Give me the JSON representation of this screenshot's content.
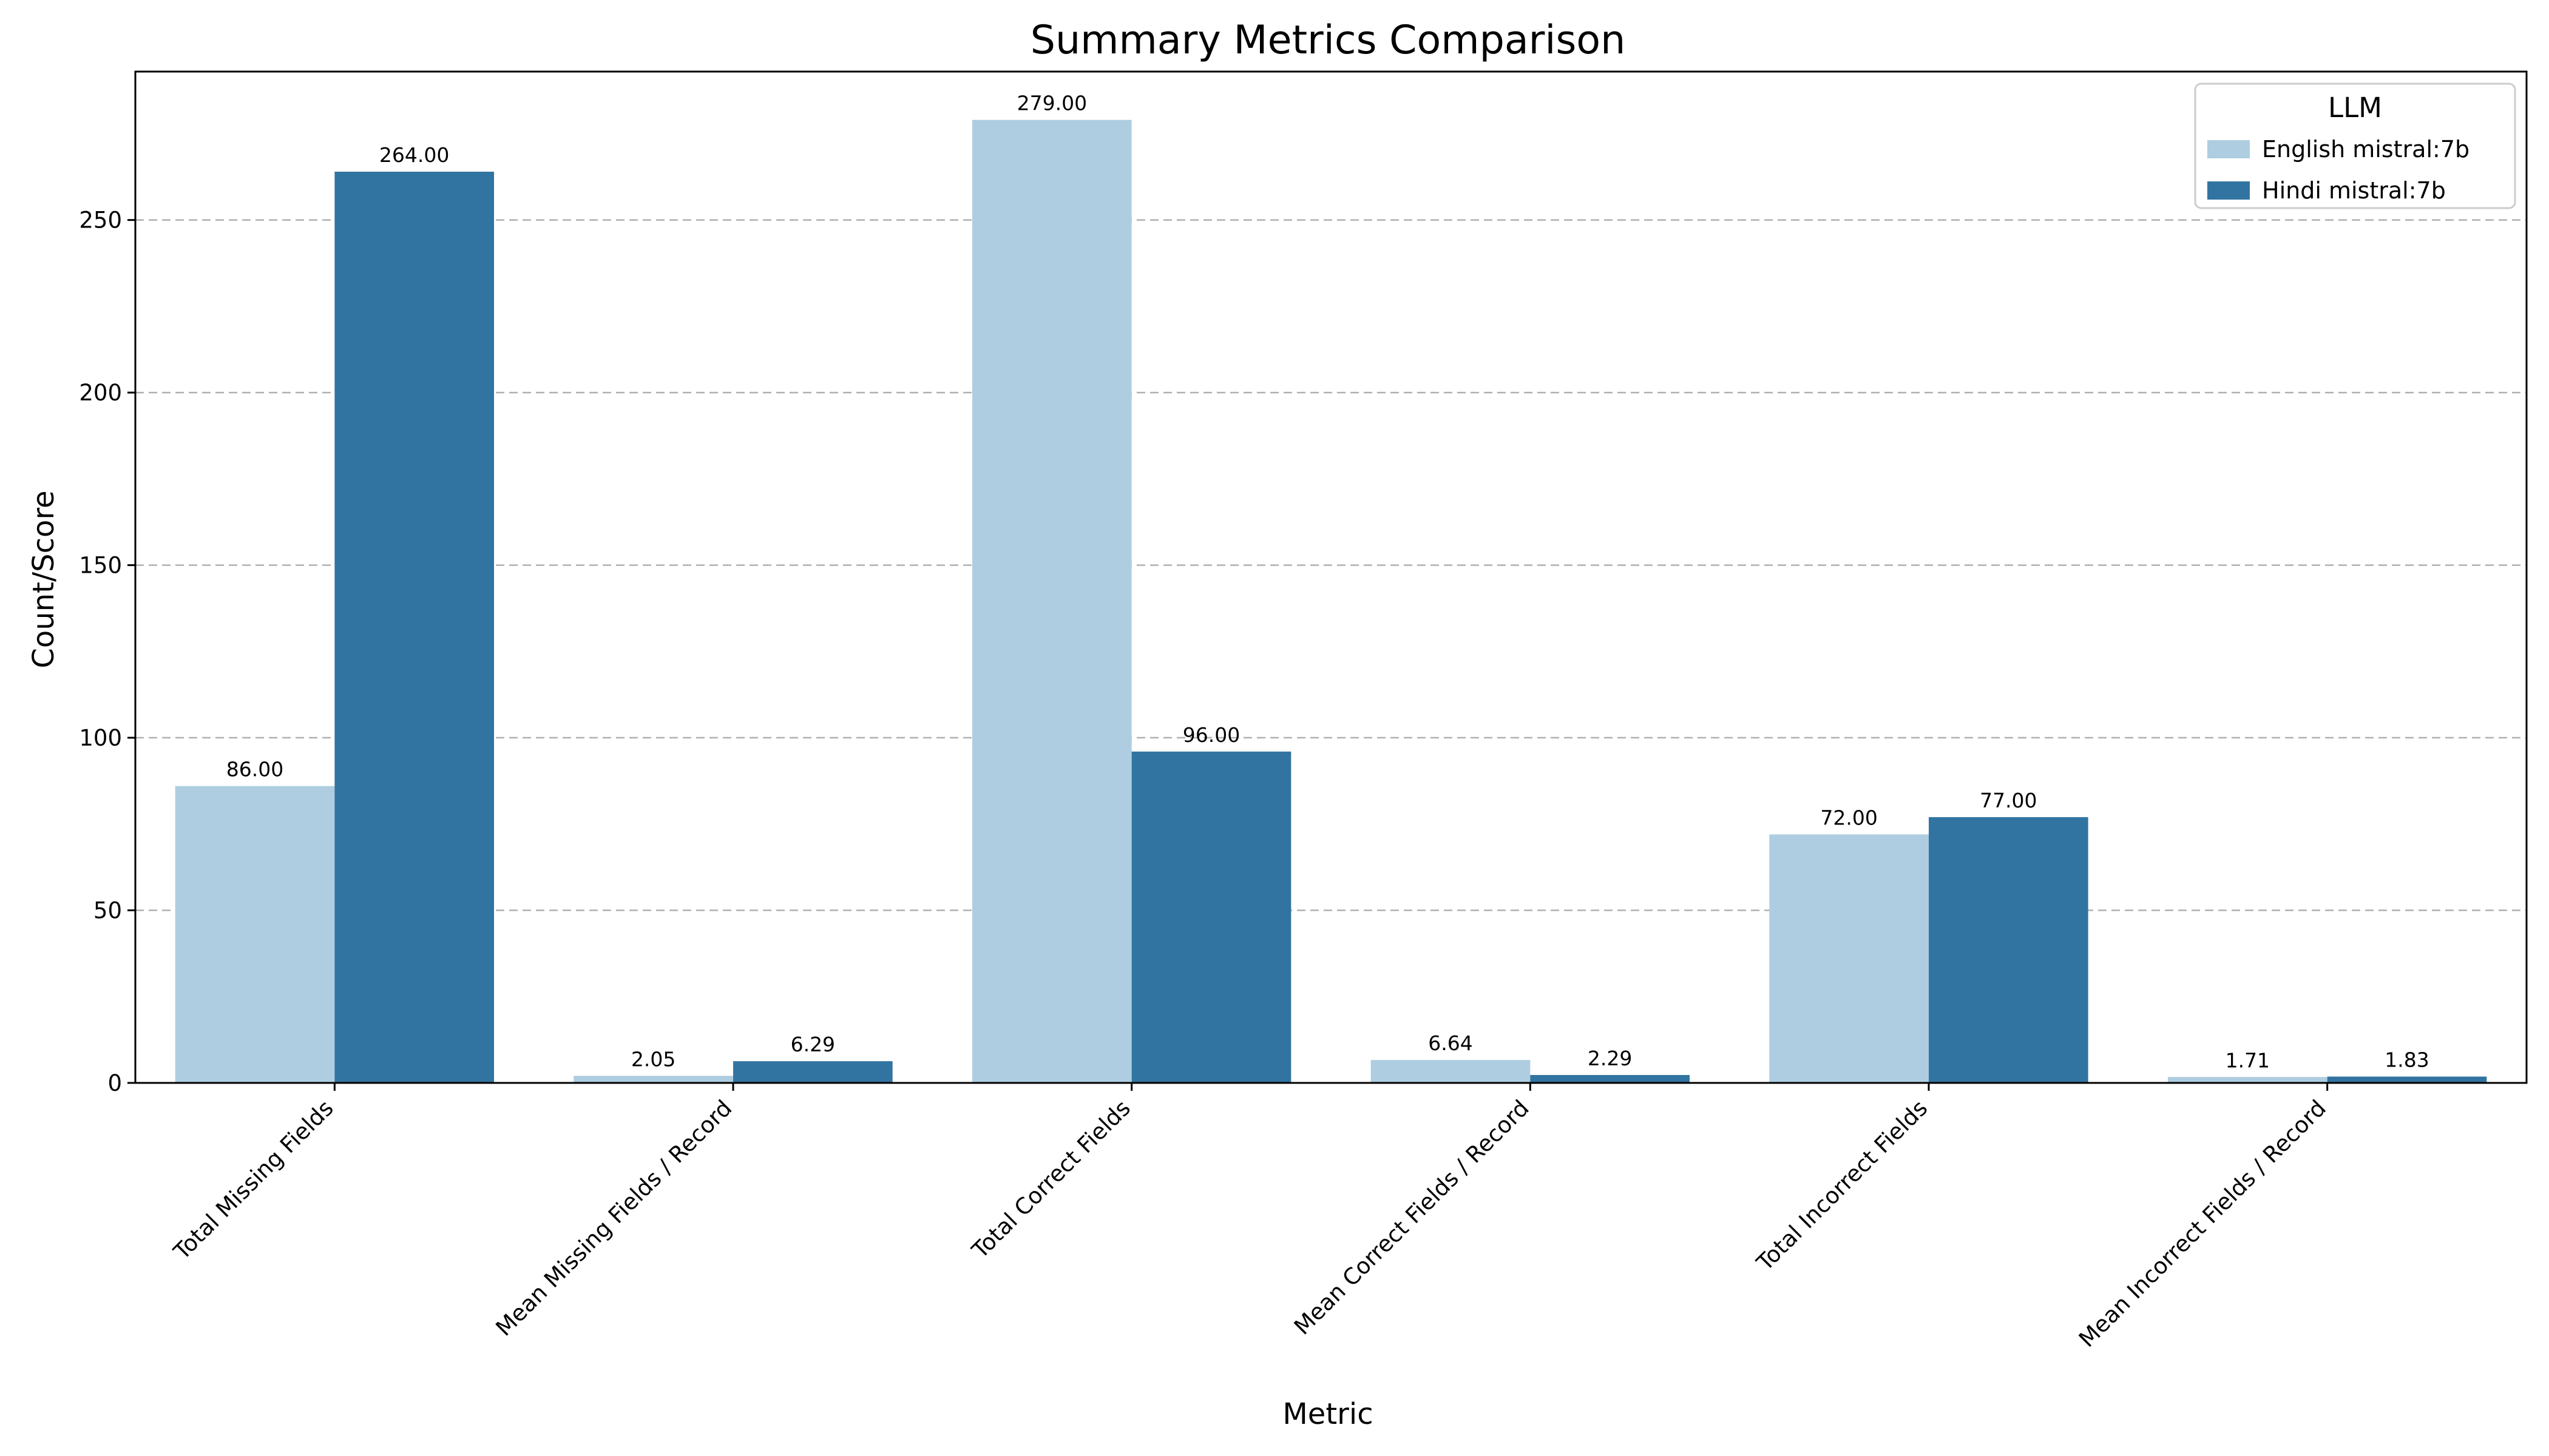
{
  "chart_data": {
    "type": "bar",
    "title": "Summary Metrics Comparison",
    "xlabel": "Metric",
    "ylabel": "Count/Score",
    "ylim": [
      0,
      293
    ],
    "yticks": [
      0,
      50,
      100,
      150,
      200,
      250
    ],
    "grid": "y-dashed",
    "categories": [
      "Total Missing Fields",
      "Mean Missing Fields / Record",
      "Total Correct Fields",
      "Mean Correct Fields / Record",
      "Total Incorrect Fields",
      "Mean Incorrect Fields / Record"
    ],
    "series": [
      {
        "name": "English mistral:7b",
        "color": "#aecde0",
        "values": [
          86.0,
          2.05,
          279.0,
          6.64,
          72.0,
          1.71
        ],
        "labels": [
          "86.00",
          "2.05",
          "279.00",
          "6.64",
          "72.00",
          "1.71"
        ]
      },
      {
        "name": "Hindi mistral:7b",
        "color": "#3274a1",
        "values": [
          264.0,
          6.29,
          96.0,
          2.29,
          77.0,
          1.83
        ],
        "labels": [
          "264.00",
          "6.29",
          "96.00",
          "2.29",
          "77.00",
          "1.83"
        ]
      }
    ],
    "legend": {
      "title": "LLM",
      "placement": "top-right"
    }
  }
}
